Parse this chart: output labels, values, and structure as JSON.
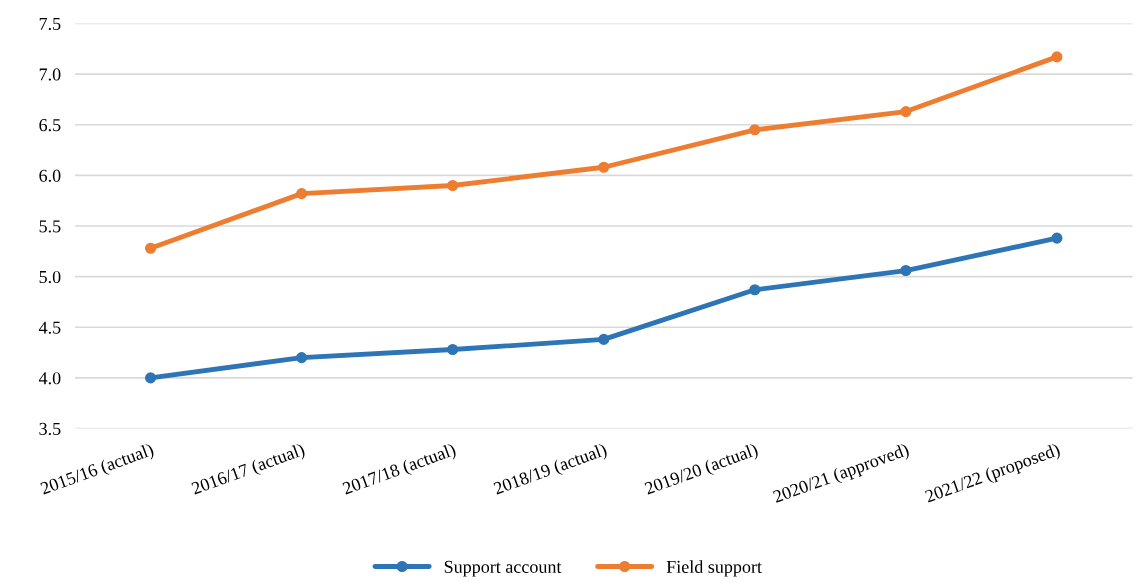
{
  "chart_data": {
    "type": "line",
    "categories": [
      "2015/16 (actual)",
      "2016/17 (actual)",
      "2017/18 (actual)",
      "2018/19 (actual)",
      "2019/20 (actual)",
      "2020/21 (approved)",
      "2021/22 (proposed)"
    ],
    "series": [
      {
        "name": "Support account",
        "color": "#2e75b6",
        "values": [
          4.0,
          4.2,
          4.28,
          4.38,
          4.87,
          5.06,
          5.38
        ]
      },
      {
        "name": "Field support",
        "color": "#ed7d31",
        "values": [
          5.28,
          5.82,
          5.9,
          6.08,
          6.45,
          6.63,
          7.17
        ]
      }
    ],
    "ylim": [
      3.5,
      7.5
    ],
    "yticks": [
      {
        "value": 3.5,
        "label": "3.5"
      },
      {
        "value": 4,
        "label": "4.0"
      },
      {
        "value": 4.5,
        "label": "4.5"
      },
      {
        "value": 5,
        "label": "5.0"
      },
      {
        "value": 5.5,
        "label": "5.5"
      },
      {
        "value": 6,
        "label": "6.0"
      },
      {
        "value": 6.5,
        "label": "6.5"
      },
      {
        "value": 7,
        "label": "7.0"
      },
      {
        "value": 7.5,
        "label": "7.5"
      }
    ],
    "grid": "y",
    "legend": "bottom",
    "marker": "circle",
    "line_style": "solid"
  }
}
